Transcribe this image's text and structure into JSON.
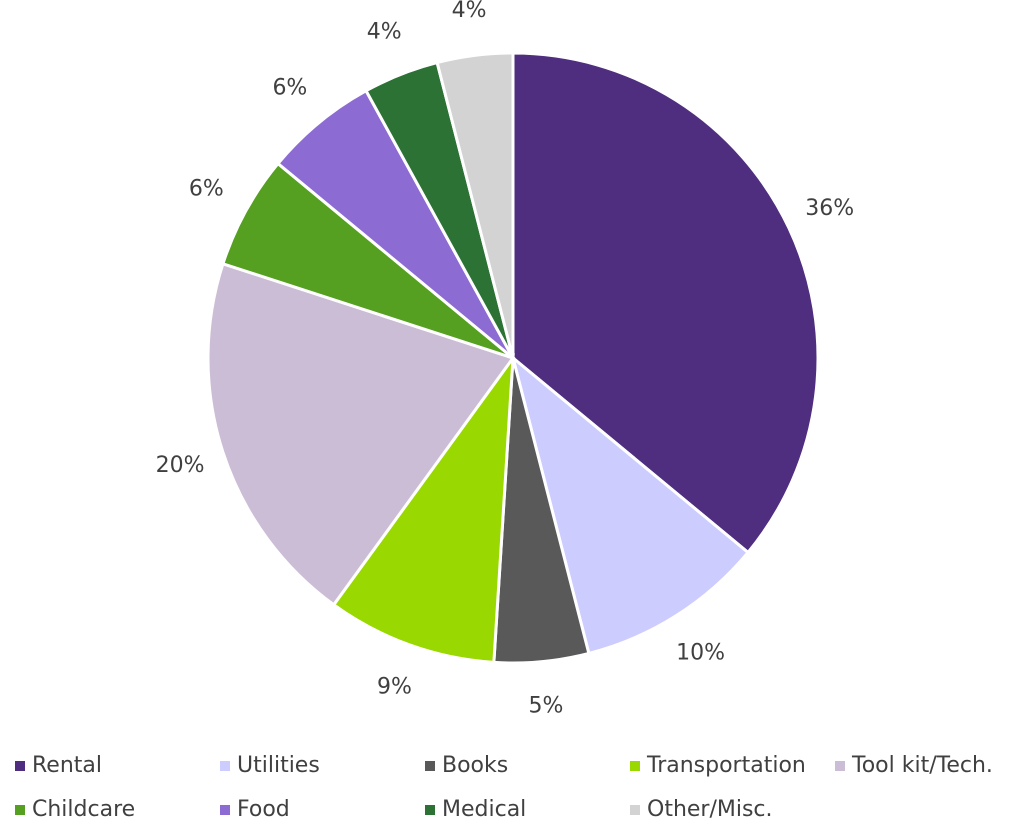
{
  "chart_data": {
    "type": "pie",
    "categories": [
      "Rental",
      "Utilities",
      "Books",
      "Transportation",
      "Tool kit/Tech.",
      "Childcare",
      "Food",
      "Medical",
      "Other/Misc."
    ],
    "values": [
      36,
      10,
      5,
      9,
      20,
      6,
      6,
      4,
      4
    ],
    "value_labels": [
      "36%",
      "10%",
      "5%",
      "9%",
      "20%",
      "6%",
      "6%",
      "4%",
      "4%"
    ],
    "colors": [
      "#4f2d7f",
      "#ccccff",
      "#595959",
      "#99d800",
      "#ccbdd6",
      "#55a021",
      "#8c6bd3",
      "#2b7234",
      "#d3d3d3"
    ],
    "legend": "bottom"
  }
}
